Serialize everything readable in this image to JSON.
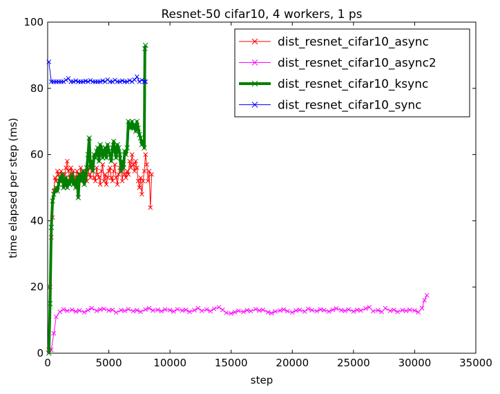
{
  "chart_data": {
    "type": "line",
    "title": "Resnet-50 cifar10, 4 workers, 1 ps",
    "xlabel": "step",
    "ylabel": "time elapsed per step (ms)",
    "xlim": [
      0,
      35000
    ],
    "ylim": [
      0,
      100
    ],
    "xticks": [
      0,
      5000,
      10000,
      15000,
      20000,
      25000,
      30000,
      35000
    ],
    "yticks": [
      0,
      20,
      40,
      60,
      80,
      100
    ],
    "legend_position": "top-right",
    "grid": false,
    "series": [
      {
        "name": "dist_resnet_cifar10_async",
        "color": "#ff0000",
        "line_width": 1,
        "marker": "x",
        "x": [
          100,
          200,
          300,
          400,
          500,
          600,
          700,
          800,
          900,
          1000,
          1100,
          1200,
          1300,
          1400,
          1500,
          1600,
          1700,
          1800,
          1900,
          2000,
          2100,
          2200,
          2300,
          2400,
          2500,
          2600,
          2700,
          2800,
          2900,
          3000,
          3100,
          3200,
          3300,
          3400,
          3500,
          3600,
          3700,
          3800,
          3900,
          4000,
          4100,
          4200,
          4300,
          4400,
          4500,
          4600,
          4700,
          4800,
          4900,
          5000,
          5100,
          5200,
          5300,
          5400,
          5500,
          5600,
          5700,
          5800,
          5900,
          6000,
          6100,
          6200,
          6300,
          6400,
          6500,
          6600,
          6700,
          6800,
          6900,
          7000,
          7100,
          7200,
          7300,
          7400,
          7500,
          7600,
          7700,
          7800,
          7900,
          8000,
          8100,
          8200,
          8300,
          8400,
          8500
        ],
        "y": [
          1,
          20,
          35,
          41,
          49,
          53,
          52,
          55,
          54,
          52,
          55,
          53,
          51,
          54,
          56,
          58,
          55,
          53,
          56,
          54,
          55,
          52,
          53,
          55,
          54,
          53,
          56,
          52,
          54,
          53,
          55,
          52,
          56,
          54,
          53,
          57,
          55,
          53,
          52,
          56,
          54,
          53,
          51,
          55,
          57,
          52,
          54,
          51,
          53,
          55,
          56,
          53,
          52,
          55,
          57,
          53,
          51,
          54,
          56,
          55,
          52,
          57,
          54,
          53,
          55,
          54,
          58,
          56,
          60,
          57,
          55,
          58,
          56,
          52,
          50,
          53,
          48,
          52,
          55,
          60,
          57,
          52,
          55,
          44,
          54
        ]
      },
      {
        "name": "dist_resnet_cifar10_async2",
        "color": "#ff00ff",
        "line_width": 1,
        "marker": "x",
        "x": [
          300,
          500,
          700,
          1000,
          1300,
          1600,
          2000,
          2300,
          2600,
          3000,
          3300,
          3600,
          4000,
          4300,
          4600,
          5000,
          5300,
          5600,
          6000,
          6300,
          6600,
          7000,
          7300,
          7600,
          8000,
          8300,
          8600,
          9000,
          9300,
          9600,
          10000,
          10300,
          10600,
          11000,
          11300,
          11600,
          12000,
          12300,
          12600,
          13000,
          13300,
          13600,
          14000,
          14300,
          14600,
          15000,
          15300,
          15600,
          16000,
          16300,
          16600,
          17000,
          17300,
          17600,
          18000,
          18300,
          18600,
          19000,
          19300,
          19600,
          20000,
          20300,
          20600,
          21000,
          21300,
          21600,
          22000,
          22300,
          22600,
          23000,
          23300,
          23600,
          24000,
          24300,
          24600,
          25000,
          25300,
          25600,
          26000,
          26300,
          26600,
          27000,
          27300,
          27600,
          28000,
          28300,
          28600,
          29000,
          29300,
          29600,
          30000,
          30300,
          30600,
          30800,
          31000
        ],
        "y": [
          1,
          6,
          11,
          12.5,
          13.2,
          12.8,
          13.1,
          12.6,
          12.9,
          12.4,
          13.0,
          13.6,
          12.8,
          13.2,
          13.4,
          12.9,
          13.1,
          12.3,
          13.0,
          12.8,
          13.3,
          12.7,
          13.0,
          12.5,
          13.2,
          13.6,
          12.9,
          13.1,
          12.7,
          13.2,
          13.0,
          12.6,
          13.3,
          12.9,
          13.1,
          12.5,
          13.0,
          13.6,
          12.8,
          13.2,
          12.7,
          13.4,
          13.9,
          13.1,
          12.2,
          12.0,
          12.4,
          12.8,
          12.5,
          13.0,
          12.7,
          13.3,
          12.9,
          13.1,
          12.4,
          12.1,
          12.6,
          12.9,
          13.2,
          12.7,
          12.3,
          12.9,
          13.1,
          12.6,
          13.4,
          13.0,
          12.7,
          13.2,
          13.0,
          12.6,
          13.1,
          13.5,
          13.0,
          12.8,
          13.2,
          12.6,
          13.1,
          12.9,
          13.5,
          13.9,
          12.7,
          13.0,
          12.5,
          13.6,
          12.8,
          13.1,
          12.5,
          13.0,
          12.8,
          13.1,
          12.9,
          12.4,
          13.6,
          16,
          17.5
        ]
      },
      {
        "name": "dist_resnet_cifar10_ksync",
        "color": "#008000",
        "line_width": 4,
        "marker": "x",
        "x": [
          100,
          200,
          300,
          400,
          500,
          600,
          700,
          800,
          900,
          1000,
          1100,
          1200,
          1300,
          1400,
          1500,
          1600,
          1700,
          1800,
          1900,
          2000,
          2100,
          2200,
          2300,
          2400,
          2500,
          2600,
          2700,
          2800,
          2900,
          3000,
          3100,
          3200,
          3300,
          3400,
          3500,
          3600,
          3700,
          3800,
          3900,
          4000,
          4100,
          4200,
          4300,
          4400,
          4500,
          4600,
          4700,
          4800,
          4900,
          5000,
          5100,
          5200,
          5300,
          5400,
          5500,
          5600,
          5700,
          5800,
          5900,
          6000,
          6100,
          6200,
          6300,
          6400,
          6500,
          6600,
          6700,
          6800,
          6900,
          7000,
          7100,
          7200,
          7300,
          7400,
          7500,
          7600,
          7700,
          7800,
          7900,
          7950,
          8000
        ],
        "y": [
          0,
          15,
          38,
          46,
          48,
          49,
          50,
          49,
          51,
          53,
          52,
          54,
          50,
          51,
          53,
          50,
          52,
          51,
          53,
          54,
          51,
          52,
          50,
          53,
          47,
          54,
          52,
          53,
          55,
          51,
          53,
          56,
          60,
          65,
          56,
          58,
          55,
          60,
          59,
          61,
          62,
          58,
          63,
          62,
          59,
          61,
          62,
          59,
          63,
          61,
          60,
          58,
          62,
          64,
          61,
          59,
          63,
          62,
          60,
          55,
          58,
          56,
          61,
          60,
          62,
          70,
          69,
          68,
          70,
          68,
          69,
          67,
          70,
          68,
          66,
          65,
          63,
          64,
          62,
          92,
          93
        ]
      },
      {
        "name": "dist_resnet_cifar10_sync",
        "color": "#0000ff",
        "line_width": 1,
        "marker": "x",
        "x": [
          100,
          300,
          500,
          700,
          900,
          1100,
          1300,
          1500,
          1700,
          1900,
          2100,
          2300,
          2500,
          2700,
          2900,
          3100,
          3300,
          3500,
          3700,
          3900,
          4100,
          4300,
          4500,
          4700,
          4900,
          5100,
          5300,
          5500,
          5700,
          5900,
          6100,
          6300,
          6500,
          6700,
          6900,
          7100,
          7300,
          7500,
          7700,
          7900,
          8000
        ],
        "y": [
          88,
          82,
          82,
          82,
          82,
          82,
          82,
          82.5,
          83,
          82,
          82,
          82.3,
          82,
          82,
          82,
          82.2,
          82,
          82.4,
          82,
          82,
          82,
          82,
          82.3,
          82,
          82.6,
          82,
          82,
          82.5,
          82,
          82,
          82.3,
          82,
          82,
          82.4,
          82,
          82.6,
          83.5,
          82,
          82.5,
          82,
          82
        ]
      }
    ]
  }
}
